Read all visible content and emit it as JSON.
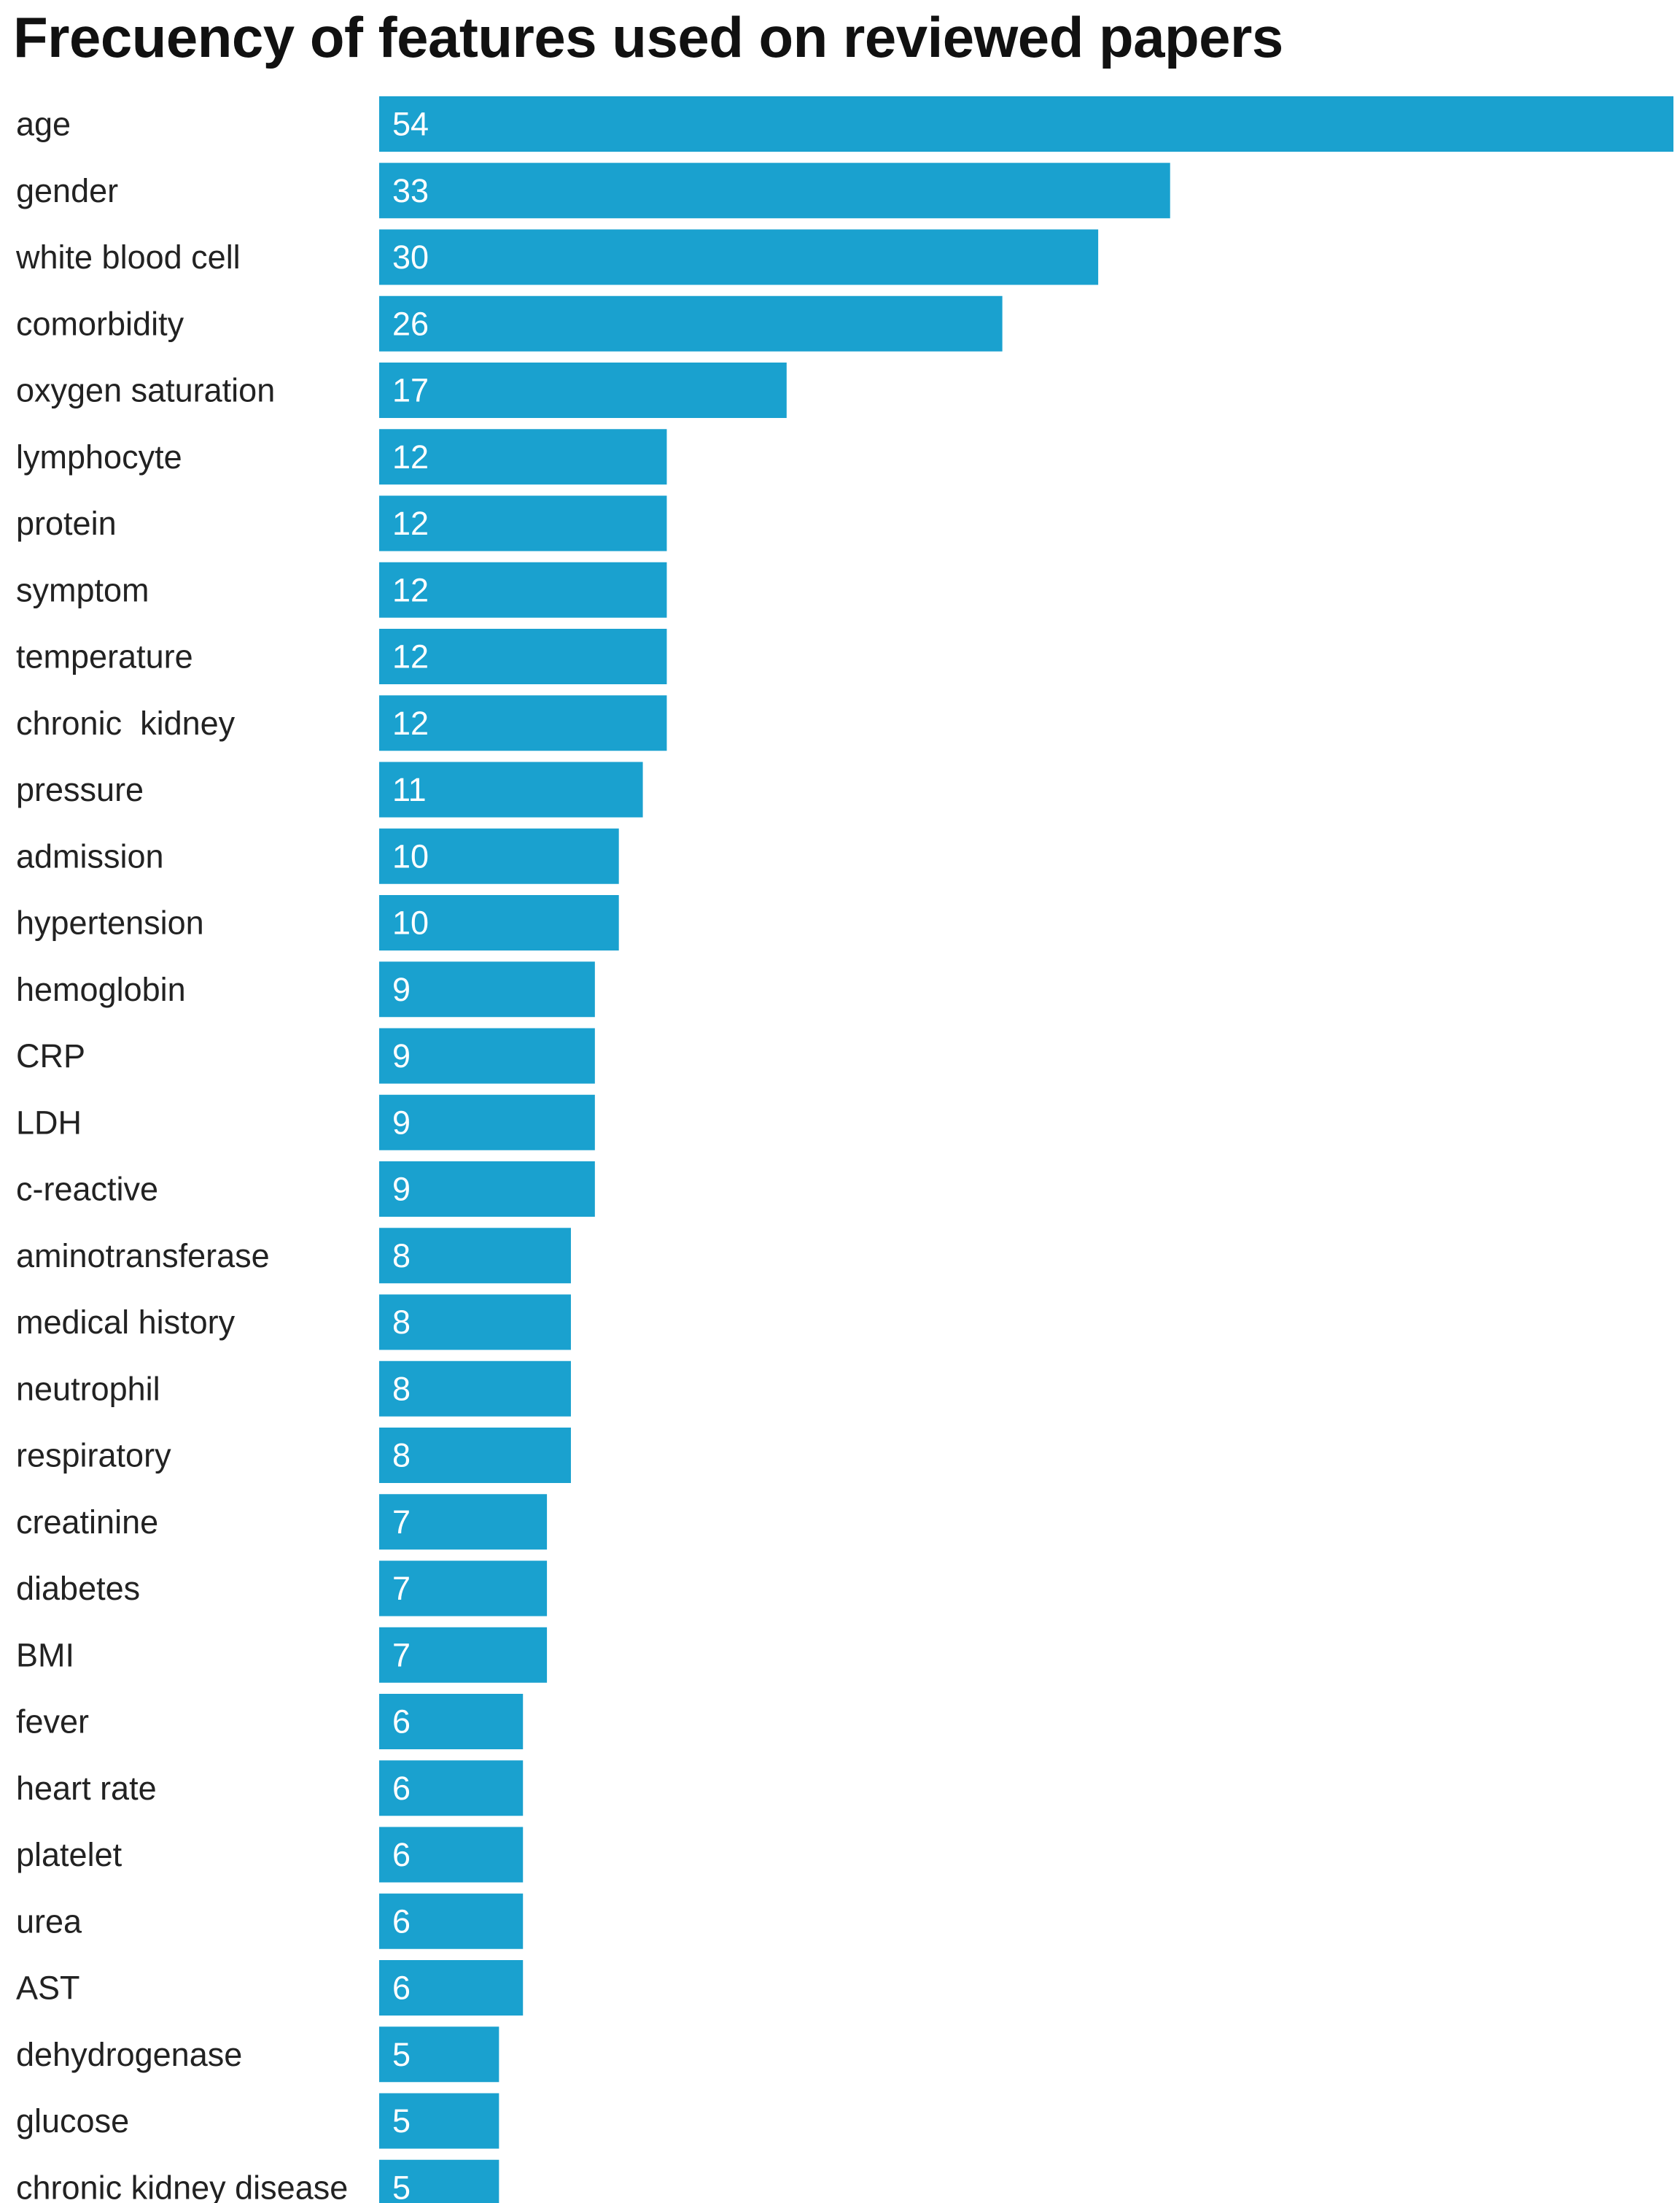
{
  "chart_data": {
    "type": "bar",
    "orientation": "horizontal",
    "title": "Frecuency of features used on reviewed papers",
    "xlabel": "",
    "ylabel": "",
    "xlim": [
      0,
      54
    ],
    "grid": false,
    "legend": "none",
    "bar_color": "#1aa1cf",
    "categories": [
      "age",
      "gender",
      "white blood cell",
      "comorbidity",
      "oxygen saturation",
      "lymphocyte",
      "protein",
      "symptom",
      "temperature",
      "chronic  kidney",
      "pressure",
      "admission",
      "hypertension",
      "hemoglobin",
      "CRP",
      "LDH",
      "c-reactive",
      "aminotransferase",
      "medical history",
      "neutrophil",
      "respiratory",
      "creatinine",
      "diabetes",
      "BMI",
      "fever",
      "heart rate",
      "platelet",
      "urea",
      "AST",
      "dehydrogenase",
      "glucose",
      "chronic kidney disease"
    ],
    "values": [
      54,
      33,
      30,
      26,
      17,
      12,
      12,
      12,
      12,
      12,
      11,
      10,
      10,
      9,
      9,
      9,
      9,
      8,
      8,
      8,
      8,
      7,
      7,
      7,
      6,
      6,
      6,
      6,
      6,
      5,
      5,
      5
    ]
  }
}
